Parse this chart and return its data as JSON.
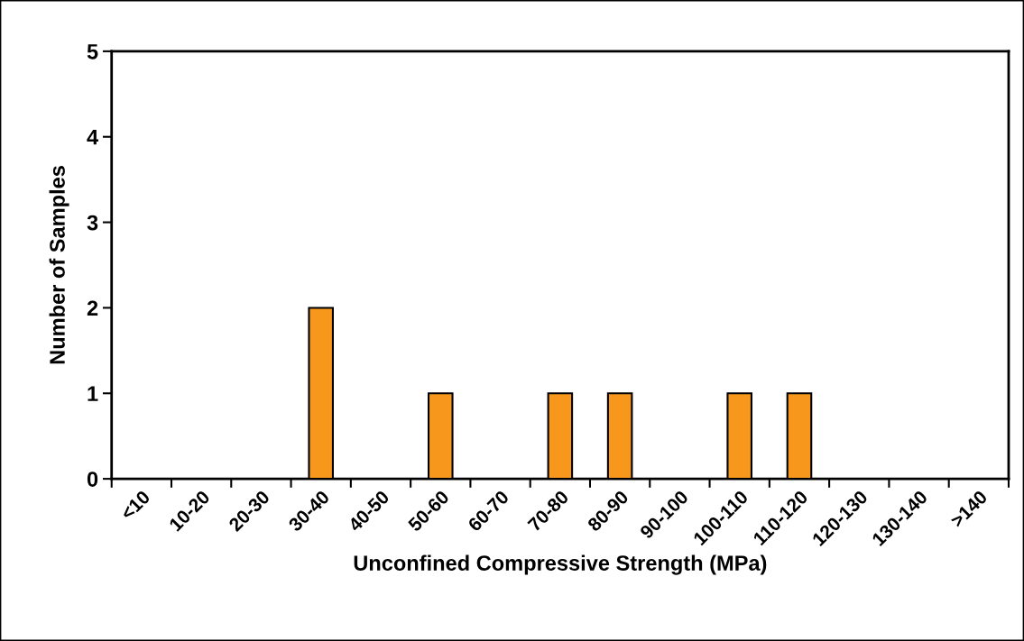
{
  "chart_data": {
    "type": "bar",
    "xlabel": "Unconfined Compressive Strength (MPa)",
    "ylabel": "Number of Samples",
    "categories": [
      "<10",
      "10-20",
      "20-30",
      "30-40",
      "40-50",
      "50-60",
      "60-70",
      "70-80",
      "80-90",
      "90-100",
      "100-110",
      "110-120",
      "120-130",
      "130-140",
      ">140"
    ],
    "values": [
      0,
      0,
      0,
      2,
      0,
      1,
      0,
      1,
      1,
      0,
      1,
      1,
      0,
      0,
      0
    ],
    "color": "#f7981d",
    "ylim": [
      0,
      5
    ],
    "yticks": [
      0,
      1,
      2,
      3,
      4,
      5
    ],
    "grid": false
  }
}
